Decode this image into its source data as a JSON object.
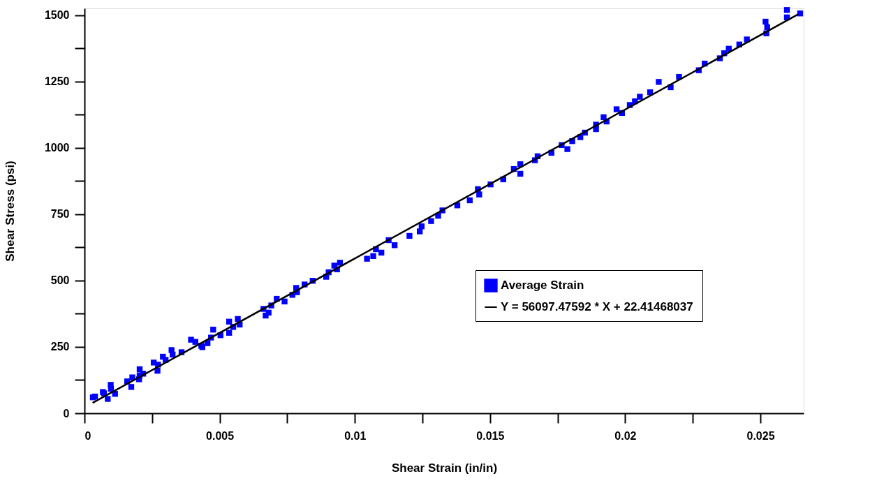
{
  "chart_data": {
    "type": "scatter",
    "xlabel": "Shear Strain (in/in)",
    "ylabel": "Shear Stress (psi)",
    "grid": false,
    "legend": "right",
    "xlim": [
      0,
      0.0266
    ],
    "xticks": [
      0,
      {
        "value": 0.0025,
        "label": null
      },
      0.005,
      {
        "value": 0.0075,
        "label": null
      },
      0.01,
      {
        "value": 0.0125,
        "label": null
      },
      0.015,
      {
        "value": 0.0175,
        "label": null
      },
      0.02,
      {
        "value": 0.0225,
        "label": null
      },
      0.025
    ],
    "ylim": [
      0,
      1525
    ],
    "yticks": [
      0,
      {
        "value": 125,
        "label": null
      },
      250,
      {
        "value": 375,
        "label": null
      },
      500,
      {
        "value": 625,
        "label": null
      },
      750,
      {
        "value": 875,
        "label": null
      },
      1000,
      {
        "value": 1125,
        "label": null
      },
      1250,
      {
        "value": 1375,
        "label": null
      },
      1500
    ],
    "series": [
      {
        "name": "Average Strain",
        "marker": "square",
        "color": "#0000ff",
        "x": [
          0.00031,
          0.00039,
          0.00068,
          0.00072,
          0.00086,
          0.00097,
          0.00098,
          0.00113,
          0.00158,
          0.00173,
          0.00177,
          0.00202,
          0.00204,
          0.00204,
          0.00217,
          0.00256,
          0.0027,
          0.00272,
          0.0029,
          0.003,
          0.00322,
          0.00326,
          0.00359,
          0.00394,
          0.0041,
          0.00432,
          0.00436,
          0.00455,
          0.00468,
          0.00476,
          0.00503,
          0.00535,
          0.00535,
          0.0055,
          0.00567,
          0.00574,
          0.00662,
          0.0067,
          0.00681,
          0.00691,
          0.00711,
          0.0074,
          0.00769,
          0.00783,
          0.00786,
          0.00814,
          0.00844,
          0.00894,
          0.00903,
          0.00924,
          0.00934,
          0.00945,
          0.01045,
          0.01068,
          0.01078,
          0.01098,
          0.01125,
          0.01147,
          0.01202,
          0.0124,
          0.01247,
          0.01282,
          0.01308,
          0.01324,
          0.01379,
          0.01425,
          0.01455,
          0.0146,
          0.01502,
          0.01549,
          0.01588,
          0.01612,
          0.01612,
          0.01666,
          0.01676,
          0.01727,
          0.01765,
          0.01786,
          0.01804,
          0.01834,
          0.01851,
          0.01892,
          0.01892,
          0.0192,
          0.01931,
          0.01968,
          0.01988,
          0.02017,
          0.02036,
          0.02054,
          0.02092,
          0.02124,
          0.02168,
          0.02199,
          0.02272,
          0.02294,
          0.0235,
          0.02366,
          0.02383,
          0.02422,
          0.0245,
          0.02519,
          0.02525,
          0.02522,
          0.02598,
          0.02598,
          0.02647
        ],
        "values": [
          60,
          63,
          80,
          75,
          54,
          107,
          92,
          73,
          120,
          99,
          135,
          128,
          166,
          143,
          149,
          191,
          160,
          183,
          213,
          201,
          238,
          221,
          230,
          277,
          269,
          254,
          249,
          264,
          285,
          315,
          294,
          303,
          345,
          325,
          355,
          334,
          393,
          368,
          379,
          406,
          431,
          421,
          446,
          472,
          456,
          485,
          499,
          514,
          531,
          556,
          542,
          567,
          582,
          592,
          618,
          605,
          652,
          633,
          668,
          685,
          704,
          724,
          744,
          764,
          783,
          802,
          844,
          824,
          862,
          881,
          920,
          938,
          902,
          953,
          968,
          981,
          1010,
          995,
          1025,
          1040,
          1057,
          1070,
          1087,
          1115,
          1099,
          1145,
          1131,
          1161,
          1175,
          1192,
          1209,
          1248,
          1228,
          1267,
          1292,
          1317,
          1337,
          1356,
          1373,
          1389,
          1408,
          1475,
          1454,
          1431,
          1519,
          1491,
          1506
        ]
      },
      {
        "name": "Y = 56097.47592 * X + 22.41468037",
        "type": "line",
        "color": "#000000",
        "line_style": "solid",
        "x": [
          0.0003,
          0.0264
        ],
        "values": [
          39,
          1503
        ]
      }
    ]
  }
}
